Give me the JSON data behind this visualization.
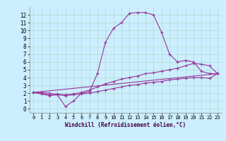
{
  "xlabel": "Windchill (Refroidissement éolien,°C)",
  "ylabel": "",
  "bg_color": "#cceeff",
  "line_color": "#993399",
  "grid_color": "#aaddcc",
  "xlim": [
    -0.5,
    23.5
  ],
  "ylim": [
    -0.5,
    13
  ],
  "xticks": [
    0,
    1,
    2,
    3,
    4,
    5,
    6,
    7,
    8,
    9,
    10,
    11,
    12,
    13,
    14,
    15,
    16,
    17,
    18,
    19,
    20,
    21,
    22,
    23
  ],
  "yticks": [
    0,
    1,
    2,
    3,
    4,
    5,
    6,
    7,
    8,
    9,
    10,
    11,
    12
  ],
  "series": [
    {
      "x": [
        0,
        1,
        2,
        3,
        4,
        5,
        6,
        7,
        8,
        9,
        10,
        11,
        12,
        13,
        14,
        15,
        16,
        17,
        18,
        19,
        20,
        21,
        22,
        23
      ],
      "y": [
        2.1,
        2.1,
        2.0,
        1.8,
        0.3,
        1.0,
        2.0,
        2.2,
        4.5,
        8.5,
        10.3,
        11.0,
        12.2,
        12.3,
        12.3,
        12.0,
        9.8,
        7.0,
        6.0,
        6.2,
        6.0,
        4.8,
        4.5,
        4.5
      ]
    },
    {
      "x": [
        0,
        1,
        2,
        3,
        4,
        5,
        6,
        7,
        8,
        9,
        10,
        11,
        12,
        13,
        14,
        15,
        16,
        17,
        18,
        19,
        20,
        21,
        22,
        23
      ],
      "y": [
        2.1,
        2.0,
        1.8,
        1.9,
        1.8,
        1.9,
        2.1,
        2.4,
        2.8,
        3.2,
        3.5,
        3.8,
        4.0,
        4.2,
        4.5,
        4.6,
        4.8,
        5.0,
        5.2,
        5.5,
        5.8,
        5.7,
        5.5,
        4.5
      ]
    },
    {
      "x": [
        0,
        1,
        2,
        3,
        4,
        5,
        6,
        7,
        8,
        9,
        10,
        11,
        12,
        13,
        14,
        15,
        16,
        17,
        18,
        19,
        20,
        21,
        22,
        23
      ],
      "y": [
        2.1,
        1.9,
        1.7,
        1.8,
        1.7,
        1.8,
        1.9,
        2.0,
        2.2,
        2.4,
        2.6,
        2.8,
        3.0,
        3.1,
        3.3,
        3.4,
        3.5,
        3.7,
        3.8,
        3.9,
        4.0,
        4.0,
        3.9,
        4.5
      ]
    },
    {
      "x": [
        0,
        23
      ],
      "y": [
        2.1,
        4.5
      ]
    }
  ]
}
